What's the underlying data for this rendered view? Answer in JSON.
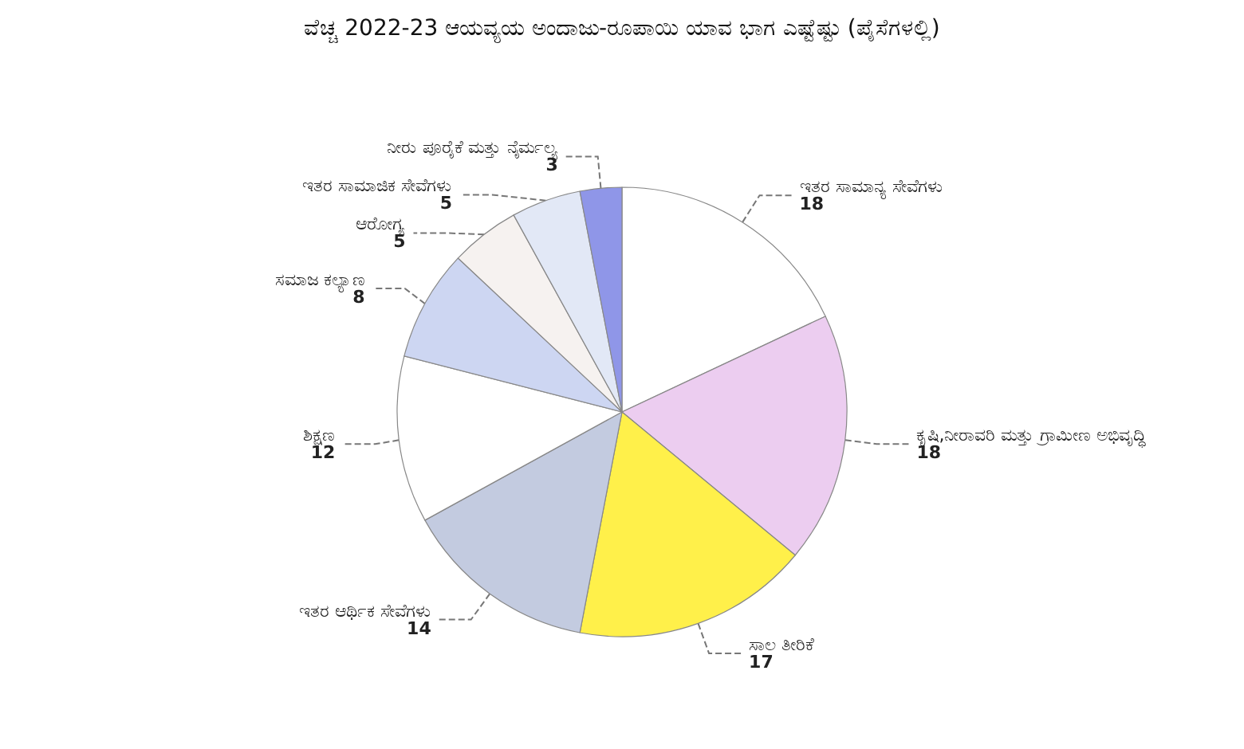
{
  "chart_data": {
    "type": "pie",
    "title": "ವೆಚ್ಚ 2022-23 ಆಯವ್ಯಯ ಅಂದಾಜು-ರೂಪಾಯಿ ಯಾವ ಭಾಗ ಎಷ್ಟೆಷ್ಟು (ಪೈಸೆಗಳಲ್ಲಿ)",
    "categories": [
      "ಇತರ ಸಾಮಾನ್ಯ ಸೇವೆಗಳು",
      "ಕೃಷಿ,ನೀರಾವರಿ ಮತ್ತು ಗ್ರಾಮೀಣ ಅಭಿವೃದ್ಧಿ",
      "ಸಾಲ ತೀರಿಕೆ",
      "ಇತರ ಆರ್ಥಿಕ ಸೇವೆಗಳು",
      "ಶಿಕ್ಷಣ",
      "ಸಮಾಜ ಕಲ್ಯಾಣ",
      "ಆರೋಗ್ಯ",
      "ಇತರ ಸಾಮಾಜಿಕ ಸೇವೆಗಳು",
      "ನೀರು ಪೂರೈಕೆ ಮತ್ತು ನೈರ್ಮಲ್ಯ"
    ],
    "values": [
      18,
      18,
      17,
      14,
      12,
      8,
      5,
      5,
      3
    ],
    "colors": [
      "#ffffff",
      "#eccdf0",
      "#fff04a",
      "#c3cbe0",
      "#ffffff",
      "#cdd6f2",
      "#f6f2f0",
      "#e2e8f6",
      "#8f96e8"
    ],
    "data_labels": true,
    "legend": false
  }
}
